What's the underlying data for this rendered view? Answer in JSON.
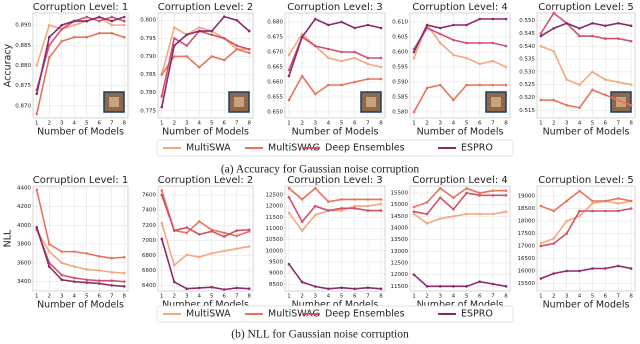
{
  "chart_data": [
    {
      "type": "line",
      "title": "Corruption Level: 1",
      "x_label": "Number of Models",
      "y_label": "Accuracy",
      "x": [
        1,
        2,
        3,
        4,
        5,
        6,
        7,
        8
      ],
      "xticks": [
        1,
        2,
        3,
        4,
        5,
        6,
        7,
        8
      ],
      "xlim": [
        0.7,
        8.3
      ],
      "ylim": [
        0.867,
        0.893
      ],
      "grid": true,
      "yticks": [
        {
          "value": 0.87,
          "label": "0.870"
        },
        {
          "value": 0.875,
          "label": "0.875"
        },
        {
          "value": 0.88,
          "label": "0.880"
        },
        {
          "value": 0.885,
          "label": "0.885"
        },
        {
          "value": 0.89,
          "label": "0.890"
        }
      ],
      "series": [
        {
          "name": "MultiSWA",
          "color": "#f5a77e",
          "values": [
            0.88,
            0.89,
            0.889,
            0.89,
            0.891,
            0.892,
            0.89,
            0.89
          ]
        },
        {
          "name": "MultiSWAG",
          "color": "#e8735a",
          "values": [
            0.868,
            0.882,
            0.886,
            0.887,
            0.887,
            0.888,
            0.888,
            0.887
          ]
        },
        {
          "name": "Deep Ensembles",
          "color": "#d2506a",
          "values": [
            0.874,
            0.885,
            0.889,
            0.891,
            0.892,
            0.891,
            0.892,
            0.891
          ]
        },
        {
          "name": "ESPRO",
          "color": "#8b2a6b",
          "values": [
            0.873,
            0.887,
            0.89,
            0.891,
            0.891,
            0.892,
            0.891,
            0.892
          ]
        }
      ]
    },
    {
      "type": "line",
      "title": "Corruption Level: 2",
      "x_label": "Number of Models",
      "x": [
        1,
        2,
        3,
        4,
        5,
        6,
        7,
        8
      ],
      "xticks": [
        1,
        2,
        3,
        4,
        5,
        6,
        7,
        8
      ],
      "xlim": [
        0.7,
        8.3
      ],
      "ylim": [
        0.773,
        0.802
      ],
      "grid": true,
      "yticks": [
        0.775,
        {
          "value": 0.78,
          "label": "0.780"
        },
        0.785,
        {
          "value": 0.79,
          "label": "0.790"
        },
        0.795,
        {
          "value": 0.8,
          "label": "0.800"
        }
      ],
      "series": [
        {
          "name": "MultiSWA",
          "color": "#f5a77e",
          "values": [
            0.785,
            0.798,
            0.796,
            0.798,
            0.797,
            0.795,
            0.792,
            0.792
          ]
        },
        {
          "name": "MultiSWAG",
          "color": "#e8735a",
          "values": [
            0.785,
            0.79,
            0.79,
            0.787,
            0.79,
            0.789,
            0.792,
            0.791
          ]
        },
        {
          "name": "Deep Ensembles",
          "color": "#d2506a",
          "values": [
            0.779,
            0.795,
            0.793,
            0.797,
            0.796,
            0.795,
            0.793,
            0.792
          ]
        },
        {
          "name": "ESPRO",
          "color": "#8b2a6b",
          "values": [
            0.776,
            0.793,
            0.796,
            0.797,
            0.797,
            0.801,
            0.8,
            0.797
          ]
        }
      ]
    },
    {
      "type": "line",
      "title": "Corruption Level: 3",
      "x_label": "Number of Models",
      "x": [
        1,
        2,
        3,
        4,
        5,
        6,
        7,
        8
      ],
      "xticks": [
        1,
        2,
        3,
        4,
        5,
        6,
        7,
        8
      ],
      "xlim": [
        0.7,
        8.3
      ],
      "ylim": [
        0.648,
        0.683
      ],
      "grid": true,
      "yticks": [
        {
          "value": 0.65,
          "label": "0.650"
        },
        0.655,
        {
          "value": 0.66,
          "label": "0.660"
        },
        0.665,
        {
          "value": 0.67,
          "label": "0.670"
        },
        0.675,
        {
          "value": 0.68,
          "label": "0.680"
        }
      ],
      "series": [
        {
          "name": "MultiSWA",
          "color": "#f5a77e",
          "values": [
            0.669,
            0.676,
            0.672,
            0.668,
            0.667,
            0.668,
            0.666,
            0.665
          ]
        },
        {
          "name": "MultiSWAG",
          "color": "#e8735a",
          "values": [
            0.654,
            0.662,
            0.656,
            0.659,
            0.659,
            0.66,
            0.661,
            0.661
          ]
        },
        {
          "name": "Deep Ensembles",
          "color": "#d2506a",
          "values": [
            0.664,
            0.675,
            0.672,
            0.671,
            0.67,
            0.67,
            0.668,
            0.668
          ]
        },
        {
          "name": "ESPRO",
          "color": "#8b2a6b",
          "values": [
            0.662,
            0.675,
            0.681,
            0.679,
            0.68,
            0.678,
            0.679,
            0.678
          ]
        }
      ]
    },
    {
      "type": "line",
      "title": "Corruption Level: 4",
      "x_label": "Number of Models",
      "x": [
        1,
        2,
        3,
        4,
        5,
        6,
        7,
        8
      ],
      "xticks": [
        1,
        2,
        3,
        4,
        5,
        6,
        7,
        8
      ],
      "xlim": [
        0.7,
        8.3
      ],
      "ylim": [
        0.578,
        0.613
      ],
      "grid": true,
      "yticks": [
        {
          "value": 0.58,
          "label": "0.580"
        },
        0.585,
        {
          "value": 0.59,
          "label": "0.590"
        },
        0.595,
        {
          "value": 0.6,
          "label": "0.600"
        },
        0.605,
        {
          "value": 0.61,
          "label": "0.610"
        }
      ],
      "series": [
        {
          "name": "MultiSWA",
          "color": "#f5a77e",
          "values": [
            0.598,
            0.609,
            0.603,
            0.599,
            0.598,
            0.596,
            0.597,
            0.595
          ]
        },
        {
          "name": "MultiSWAG",
          "color": "#e8735a",
          "values": [
            0.58,
            0.588,
            0.589,
            0.584,
            0.589,
            0.589,
            0.589,
            0.589
          ]
        },
        {
          "name": "Deep Ensembles",
          "color": "#d2506a",
          "values": [
            0.601,
            0.608,
            0.606,
            0.604,
            0.603,
            0.603,
            0.603,
            0.602
          ]
        },
        {
          "name": "ESPRO",
          "color": "#8b2a6b",
          "values": [
            0.6,
            0.609,
            0.608,
            0.609,
            0.609,
            0.611,
            0.611,
            0.611
          ]
        }
      ]
    },
    {
      "type": "line",
      "title": "Corruption Level: 5",
      "x_label": "Number of Models",
      "x": [
        1,
        2,
        3,
        4,
        5,
        6,
        7,
        8
      ],
      "xticks": [
        1,
        2,
        3,
        4,
        5,
        6,
        7,
        8
      ],
      "xlim": [
        0.7,
        8.3
      ],
      "ylim": [
        0.512,
        0.553
      ],
      "grid": true,
      "yticks": [
        0.515,
        {
          "value": 0.52,
          "label": "0.520"
        },
        0.525,
        {
          "value": 0.53,
          "label": "0.530"
        },
        0.535,
        {
          "value": 0.54,
          "label": "0.540"
        },
        0.545,
        {
          "value": 0.55,
          "label": "0.550"
        }
      ],
      "series": [
        {
          "name": "MultiSWA",
          "color": "#f5a77e",
          "values": [
            0.54,
            0.538,
            0.527,
            0.525,
            0.53,
            0.527,
            0.526,
            0.525
          ]
        },
        {
          "name": "MultiSWAG",
          "color": "#e8735a",
          "values": [
            0.519,
            0.519,
            0.517,
            0.516,
            0.523,
            0.521,
            0.519,
            0.517
          ]
        },
        {
          "name": "Deep Ensembles",
          "color": "#d2506a",
          "values": [
            0.545,
            0.553,
            0.549,
            0.544,
            0.544,
            0.543,
            0.543,
            0.542
          ]
        },
        {
          "name": "ESPRO",
          "color": "#8b2a6b",
          "values": [
            0.544,
            0.547,
            0.549,
            0.547,
            0.549,
            0.548,
            0.549,
            0.548
          ]
        }
      ]
    },
    {
      "type": "line",
      "title": "Corruption Level: 1",
      "x_label": "Number of Models",
      "y_label": "NLL",
      "x": [
        1,
        2,
        3,
        4,
        5,
        6,
        7,
        8
      ],
      "xticks": [
        1,
        2,
        3,
        4,
        5,
        6,
        7,
        8
      ],
      "xlim": [
        0.7,
        8.3
      ],
      "ylim": [
        3300,
        4420
      ],
      "grid": true,
      "yticks": [
        3400,
        3600,
        3800,
        4000,
        4200,
        4400
      ],
      "series": [
        {
          "name": "MultiSWA",
          "color": "#f5a77e",
          "values": [
            3950,
            3720,
            3600,
            3560,
            3530,
            3520,
            3500,
            3490
          ]
        },
        {
          "name": "MultiSWAG",
          "color": "#e8735a",
          "values": [
            4380,
            3800,
            3720,
            3720,
            3700,
            3670,
            3650,
            3660
          ]
        },
        {
          "name": "Deep Ensembles",
          "color": "#d2506a",
          "values": [
            3960,
            3600,
            3470,
            3440,
            3420,
            3410,
            3410,
            3400
          ]
        },
        {
          "name": "ESPRO",
          "color": "#8b2a6b",
          "values": [
            3980,
            3560,
            3420,
            3400,
            3390,
            3380,
            3360,
            3350
          ]
        }
      ]
    },
    {
      "type": "line",
      "title": "Corruption Level: 2",
      "x_label": "Number of Models",
      "x": [
        1,
        2,
        3,
        4,
        5,
        6,
        7,
        8
      ],
      "xticks": [
        1,
        2,
        3,
        4,
        5,
        6,
        7,
        8
      ],
      "xlim": [
        0.7,
        8.3
      ],
      "ylim": [
        6330,
        7720
      ],
      "grid": true,
      "yticks": [
        6400,
        6600,
        6800,
        7000,
        7200,
        7400,
        7600
      ],
      "series": [
        {
          "name": "MultiSWA",
          "color": "#f5a77e",
          "values": [
            7230,
            6670,
            6810,
            6780,
            6830,
            6860,
            6890,
            6920
          ]
        },
        {
          "name": "MultiSWAG",
          "color": "#e8735a",
          "values": [
            7660,
            7130,
            7100,
            7250,
            7140,
            7100,
            7060,
            7120
          ]
        },
        {
          "name": "Deep Ensembles",
          "color": "#d2506a",
          "values": [
            7600,
            7130,
            7170,
            7080,
            7120,
            7050,
            7130,
            7140
          ]
        },
        {
          "name": "ESPRO",
          "color": "#8b2a6b",
          "values": [
            7020,
            6450,
            6360,
            6370,
            6380,
            6350,
            6370,
            6360
          ]
        }
      ]
    },
    {
      "type": "line",
      "title": "Corruption Level: 3",
      "x_label": "Number of Models",
      "x": [
        1,
        2,
        3,
        4,
        5,
        6,
        7,
        8
      ],
      "xticks": [
        1,
        2,
        3,
        4,
        5,
        6,
        7,
        8
      ],
      "xlim": [
        0.7,
        8.3
      ],
      "ylim": [
        8200,
        12900
      ],
      "grid": true,
      "yticks": [
        8500,
        9000,
        9500,
        10000,
        10500,
        11000,
        11500,
        12000,
        12500
      ],
      "series": [
        {
          "name": "MultiSWA",
          "color": "#f5a77e",
          "values": [
            11700,
            10900,
            11600,
            11800,
            11800,
            12000,
            12000,
            12100
          ]
        },
        {
          "name": "MultiSWAG",
          "color": "#e8735a",
          "values": [
            12800,
            12300,
            12800,
            12200,
            12300,
            12300,
            12300,
            12300
          ]
        },
        {
          "name": "Deep Ensembles",
          "color": "#d2506a",
          "values": [
            12400,
            11300,
            12000,
            11800,
            11900,
            11900,
            11800,
            11800
          ]
        },
        {
          "name": "ESPRO",
          "color": "#8b2a6b",
          "values": [
            9400,
            8600,
            8400,
            8300,
            8350,
            8300,
            8350,
            8300
          ]
        }
      ]
    },
    {
      "type": "line",
      "title": "Corruption Level: 4",
      "x_label": "Number of Models",
      "x": [
        1,
        2,
        3,
        4,
        5,
        6,
        7,
        8
      ],
      "xticks": [
        1,
        2,
        3,
        4,
        5,
        6,
        7,
        8
      ],
      "xlim": [
        0.7,
        8.3
      ],
      "ylim": [
        11300,
        15800
      ],
      "grid": true,
      "yticks": [
        11500,
        12000,
        12500,
        13000,
        13500,
        14000,
        14500,
        15000,
        15500
      ],
      "series": [
        {
          "name": "MultiSWA",
          "color": "#f5a77e",
          "values": [
            14600,
            14200,
            14400,
            14500,
            14600,
            14600,
            14600,
            14700
          ]
        },
        {
          "name": "MultiSWAG",
          "color": "#e8735a",
          "values": [
            14900,
            15100,
            15700,
            15300,
            15700,
            15500,
            15600,
            15600
          ]
        },
        {
          "name": "Deep Ensembles",
          "color": "#d2506a",
          "values": [
            14700,
            14600,
            15300,
            14800,
            15500,
            15400,
            15400,
            15400
          ]
        },
        {
          "name": "ESPRO",
          "color": "#8b2a6b",
          "values": [
            12000,
            11500,
            11500,
            11500,
            11500,
            11700,
            11600,
            11500
          ]
        }
      ]
    },
    {
      "type": "line",
      "title": "Corruption Level: 5",
      "x_label": "Number of Models",
      "x": [
        1,
        2,
        3,
        4,
        5,
        6,
        7,
        8
      ],
      "xticks": [
        1,
        2,
        3,
        4,
        5,
        6,
        7,
        8
      ],
      "xlim": [
        0.7,
        8.3
      ],
      "ylim": [
        15200,
        19400
      ],
      "grid": true,
      "yticks": [
        15500,
        16000,
        16500,
        17000,
        17500,
        18000,
        18500,
        19000
      ],
      "series": [
        {
          "name": "MultiSWA",
          "color": "#f5a77e",
          "values": [
            17100,
            17300,
            18000,
            18200,
            18700,
            18800,
            18700,
            18800
          ]
        },
        {
          "name": "MultiSWAG",
          "color": "#e8735a",
          "values": [
            18600,
            18400,
            18800,
            19200,
            18800,
            18800,
            18900,
            18800
          ]
        },
        {
          "name": "Deep Ensembles",
          "color": "#d2506a",
          "values": [
            17000,
            17100,
            17500,
            18400,
            18400,
            18400,
            18400,
            18500
          ]
        },
        {
          "name": "ESPRO",
          "color": "#8b2a6b",
          "values": [
            15700,
            15900,
            16000,
            16000,
            16100,
            16100,
            16200,
            16100
          ]
        }
      ]
    }
  ],
  "captions": [
    "(a) Accuracy for Gaussian noise corruption",
    "(b) NLL for Gaussian noise corruption"
  ]
}
